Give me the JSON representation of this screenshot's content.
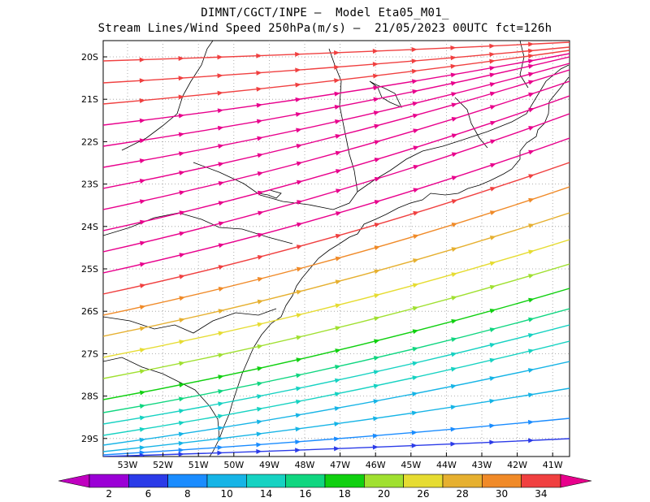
{
  "title_line1": "DIMNT/CGCT/INPE –  Model Eta05_M01_",
  "title_line2": "Stream Lines/Wind Speed 250hPa(m/s) –  21/05/2023 00UTC fct=126h",
  "lat_labels": [
    "20S",
    "21S",
    "22S",
    "23S",
    "24S",
    "25S",
    "26S",
    "27S",
    "28S",
    "29S"
  ],
  "lon_labels": [
    "53W",
    "52W",
    "51W",
    "50W",
    "49W",
    "48W",
    "47W",
    "46W",
    "45W",
    "44W",
    "43W",
    "42W",
    "41W"
  ],
  "colorbar": {
    "labels": [
      "2",
      "6",
      "8",
      "10",
      "14",
      "16",
      "18",
      "20",
      "26",
      "28",
      "30",
      "34"
    ],
    "colors": [
      "#9b00d6",
      "#2b3be8",
      "#1a8cff",
      "#16b4e6",
      "#16d2c2",
      "#10d680",
      "#10d010",
      "#a0e030",
      "#e6dc32",
      "#e6b030",
      "#f08a28",
      "#f04040"
    ],
    "low_color": "#c000c0",
    "high_color": "#e8008c"
  },
  "map": {
    "lon_range": [
      -53.7,
      -40.5
    ],
    "lat_range": [
      -29.5,
      -19.9
    ],
    "grid": true,
    "grid_style": "dotted",
    "variable": "Wind speed and streamlines at 250 hPa",
    "units": "m/s"
  },
  "streamlines": [
    {
      "y0": 75,
      "y1": 52,
      "color": "#f04040"
    },
    {
      "y0": 102,
      "y1": 58,
      "color": "#f04040"
    },
    {
      "y0": 128,
      "y1": 62,
      "color": "#f04040"
    },
    {
      "y0": 154,
      "y1": 66,
      "color": "#e8008c"
    },
    {
      "y0": 180,
      "y1": 70,
      "color": "#e8008c"
    },
    {
      "y0": 206,
      "y1": 78,
      "color": "#e8008c"
    },
    {
      "y0": 232,
      "y1": 86,
      "color": "#e8008c"
    },
    {
      "y0": 258,
      "y1": 100,
      "color": "#e8008c"
    },
    {
      "y0": 284,
      "y1": 118,
      "color": "#e8008c"
    },
    {
      "y0": 310,
      "y1": 140,
      "color": "#e8008c"
    },
    {
      "y0": 336,
      "y1": 170,
      "color": "#e8008c"
    },
    {
      "y0": 362,
      "y1": 200,
      "color": "#f04040"
    },
    {
      "y0": 388,
      "y1": 230,
      "color": "#f08a28"
    },
    {
      "y0": 414,
      "y1": 262,
      "color": "#e6b030"
    },
    {
      "y0": 440,
      "y1": 295,
      "color": "#e6dc32"
    },
    {
      "y0": 466,
      "y1": 325,
      "color": "#a0e030"
    },
    {
      "y0": 492,
      "y1": 355,
      "color": "#10d010"
    },
    {
      "y0": 508,
      "y1": 380,
      "color": "#10d680"
    },
    {
      "y0": 522,
      "y1": 400,
      "color": "#16d2c2"
    },
    {
      "y0": 536,
      "y1": 420,
      "color": "#16d2c2"
    },
    {
      "y0": 548,
      "y1": 445,
      "color": "#16b4e6"
    },
    {
      "y0": 556,
      "y1": 478,
      "color": "#16b4e6"
    },
    {
      "y0": 560,
      "y1": 515,
      "color": "#1a8cff"
    },
    {
      "y0": 562,
      "y1": 540,
      "color": "#2b3be8"
    }
  ]
}
